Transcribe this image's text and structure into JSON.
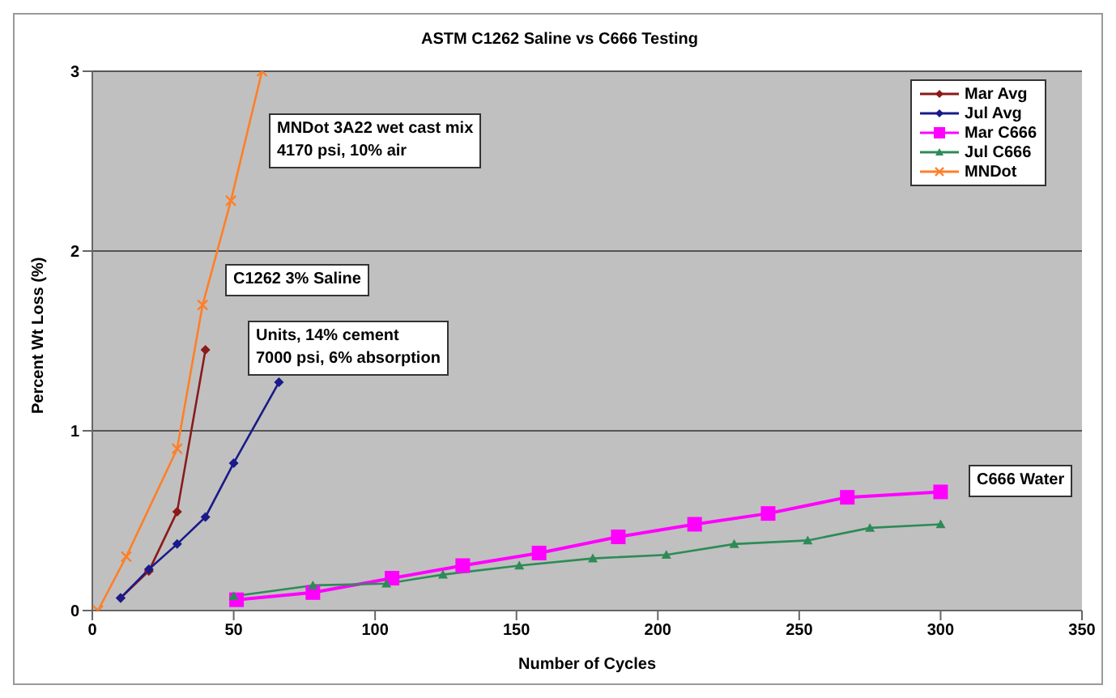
{
  "chart_data": {
    "type": "line",
    "title": "ASTM C1262 Saline vs C666 Testing",
    "xlabel": "Number of Cycles",
    "ylabel": "Percent Wt Loss (%)",
    "xlim": [
      0,
      350
    ],
    "xticks": [
      0,
      50,
      100,
      150,
      200,
      250,
      300,
      350
    ],
    "ylim": [
      0,
      3
    ],
    "yticks": [
      0,
      1,
      2,
      3
    ],
    "grid": "y",
    "legend": "top right",
    "series": [
      {
        "name": "Mar Avg",
        "color": "#8b1a1a",
        "marker": "diamond",
        "x": [
          10,
          20,
          30,
          40
        ],
        "values": [
          0.07,
          0.22,
          0.55,
          1.45
        ]
      },
      {
        "name": "Jul Avg",
        "color": "#1a1a8b",
        "marker": "diamond",
        "x": [
          10,
          20,
          30,
          40,
          50,
          66
        ],
        "values": [
          0.07,
          0.23,
          0.37,
          0.52,
          0.82,
          1.27
        ]
      },
      {
        "name": "Mar C666",
        "color": "#ff00ff",
        "marker": "square",
        "x": [
          51,
          78,
          106,
          131,
          158,
          186,
          213,
          239,
          267,
          300
        ],
        "values": [
          0.06,
          0.1,
          0.18,
          0.25,
          0.32,
          0.41,
          0.48,
          0.54,
          0.63,
          0.66
        ]
      },
      {
        "name": "Jul C666",
        "color": "#2e8b57",
        "marker": "triangle",
        "x": [
          50,
          78,
          104,
          124,
          151,
          177,
          203,
          227,
          253,
          275,
          300
        ],
        "values": [
          0.08,
          0.14,
          0.15,
          0.2,
          0.25,
          0.29,
          0.31,
          0.37,
          0.39,
          0.46,
          0.48
        ]
      },
      {
        "name": "MNDot",
        "color": "#ff7f27",
        "marker": "cross",
        "x": [
          2,
          12,
          30,
          39,
          49,
          60
        ],
        "values": [
          0,
          0.3,
          0.9,
          1.7,
          2.28,
          3
        ]
      }
    ],
    "annotations": [
      "MNDot 3A22 wet cast mix\n4170 psi, 10% air",
      "C1262 3% Saline",
      "Units, 14% cement\n7000 psi, 6% absorption",
      "C666 Water"
    ]
  }
}
